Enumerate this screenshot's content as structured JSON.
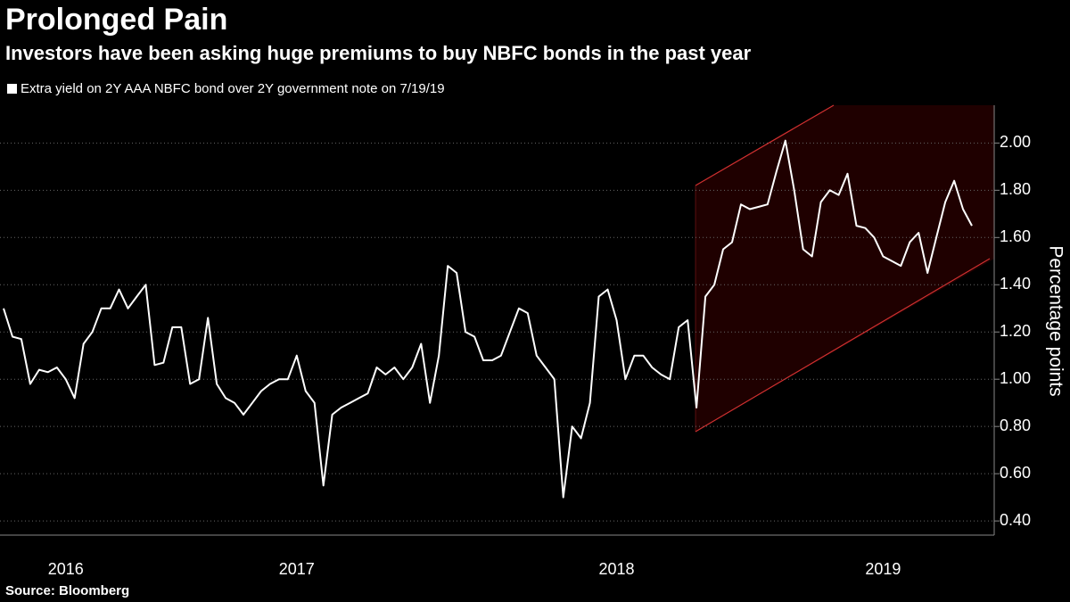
{
  "chart_data": {
    "type": "line",
    "title": "Prolonged Pain",
    "subtitle": "Investors have been asking huge premiums to buy NBFC bonds in the past year",
    "y_label": "Percentage points",
    "source": "Source: Bloomberg",
    "categories": [
      null,
      null,
      null,
      null,
      null,
      null,
      null,
      "2016",
      null,
      null,
      null,
      null,
      null,
      null,
      null,
      null,
      null,
      null,
      null,
      null,
      null,
      null,
      null,
      null,
      null,
      null,
      null,
      null,
      null,
      null,
      null,
      null,
      null,
      "2017",
      null,
      null,
      null,
      null,
      null,
      null,
      null,
      null,
      null,
      null,
      null,
      null,
      null,
      null,
      null,
      null,
      null,
      null,
      null,
      null,
      null,
      null,
      null,
      null,
      null,
      null,
      null,
      null,
      null,
      null,
      null,
      null,
      null,
      null,
      null,
      "2018",
      null,
      null,
      null,
      null,
      null,
      null,
      null,
      null,
      null,
      null,
      null,
      null,
      null,
      null,
      null,
      null,
      null,
      null,
      null,
      null,
      null,
      null,
      null,
      null,
      null,
      null,
      null,
      null,
      null,
      "2019",
      null,
      null,
      null,
      null,
      null,
      null,
      null,
      null,
      null,
      null
    ],
    "series": [
      {
        "name": "Extra yield on 2Y AAA NBFC bond over 2Y government note on 7/19/19",
        "color": "#ffffff",
        "values": [
          1.3,
          1.18,
          1.17,
          0.98,
          1.04,
          1.03,
          1.05,
          1.0,
          0.92,
          1.15,
          1.2,
          1.3,
          1.3,
          1.38,
          1.3,
          1.35,
          1.4,
          1.06,
          1.07,
          1.22,
          1.22,
          0.98,
          1.0,
          1.26,
          0.98,
          0.92,
          0.9,
          0.85,
          0.9,
          0.95,
          0.98,
          1.0,
          1.0,
          1.1,
          0.95,
          0.9,
          0.55,
          0.85,
          0.88,
          0.9,
          0.92,
          0.94,
          1.05,
          1.02,
          1.05,
          1.0,
          1.05,
          1.15,
          0.9,
          1.1,
          1.48,
          1.45,
          1.2,
          1.18,
          1.08,
          1.08,
          1.1,
          1.2,
          1.3,
          1.28,
          1.1,
          1.05,
          1.0,
          0.5,
          0.8,
          0.75,
          0.9,
          1.35,
          1.38,
          1.25,
          1.0,
          1.1,
          1.1,
          1.05,
          1.02,
          1.0,
          1.22,
          1.25,
          0.88,
          1.35,
          1.4,
          1.55,
          1.58,
          1.74,
          1.72,
          1.73,
          1.74,
          1.88,
          2.01,
          1.8,
          1.55,
          1.52,
          1.75,
          1.8,
          1.78,
          1.87,
          1.65,
          1.64,
          1.6,
          1.52,
          1.5,
          1.48,
          1.58,
          1.62,
          1.45,
          1.6,
          1.75,
          1.84,
          1.72,
          1.65
        ]
      }
    ],
    "ylim": [
      0.34,
      2.16
    ],
    "yticks": [
      {
        "value": 0.4,
        "label": "0.40"
      },
      {
        "value": 0.6,
        "label": "0.60"
      },
      {
        "value": 0.8,
        "label": "0.80"
      },
      {
        "value": 1.0,
        "label": "1.00"
      },
      {
        "value": 1.2,
        "label": "1.20"
      },
      {
        "value": 1.4,
        "label": "1.40"
      },
      {
        "value": 1.6,
        "label": "1.60"
      },
      {
        "value": 1.8,
        "label": "1.80"
      },
      {
        "value": 2.0,
        "label": "2.00"
      }
    ],
    "grid": true
  }
}
